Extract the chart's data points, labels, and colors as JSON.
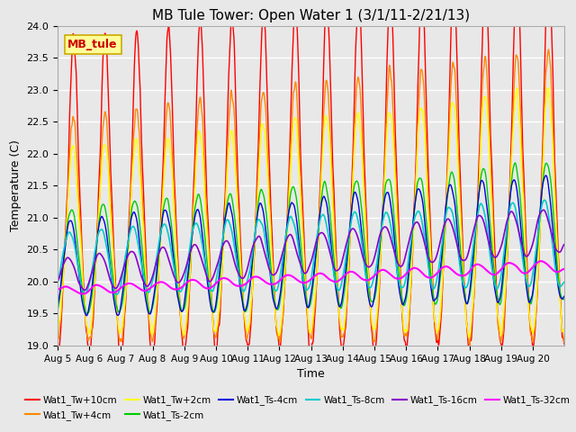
{
  "title": "MB Tule Tower: Open Water 1 (3/1/11-2/21/13)",
  "xlabel": "Time",
  "ylabel": "Temperature (C)",
  "ylim": [
    19.0,
    24.0
  ],
  "yticks": [
    19.0,
    19.5,
    20.0,
    20.5,
    21.0,
    21.5,
    22.0,
    22.5,
    23.0,
    23.5,
    24.0
  ],
  "xtick_labels": [
    "Aug 5",
    "Aug 6",
    "Aug 7",
    "Aug 8",
    "Aug 9",
    "Aug 10",
    "Aug 11",
    "Aug 12",
    "Aug 13",
    "Aug 14",
    "Aug 15",
    "Aug 16",
    "Aug 17",
    "Aug 18",
    "Aug 19",
    "Aug 20"
  ],
  "legend_label": "MB_tule",
  "series_labels": [
    "Wat1_Tw+10cm",
    "Wat1_Tw+4cm",
    "Wat1_Tw+2cm",
    "Wat1_Ts-2cm",
    "Wat1_Ts-4cm",
    "Wat1_Ts-8cm",
    "Wat1_Ts-16cm",
    "Wat1_Ts-32cm"
  ],
  "series_colors": [
    "#ff0000",
    "#ff8800",
    "#ffff00",
    "#00cc00",
    "#0000dd",
    "#00cccc",
    "#8800cc",
    "#ff00ff"
  ],
  "background_color": "#e8e8e8",
  "grid_color": "#ffffff",
  "title_fontsize": 11,
  "legend_box_facecolor": "#ffff99",
  "legend_box_edgecolor": "#ccaa00",
  "legend_text_color": "#cc0000"
}
